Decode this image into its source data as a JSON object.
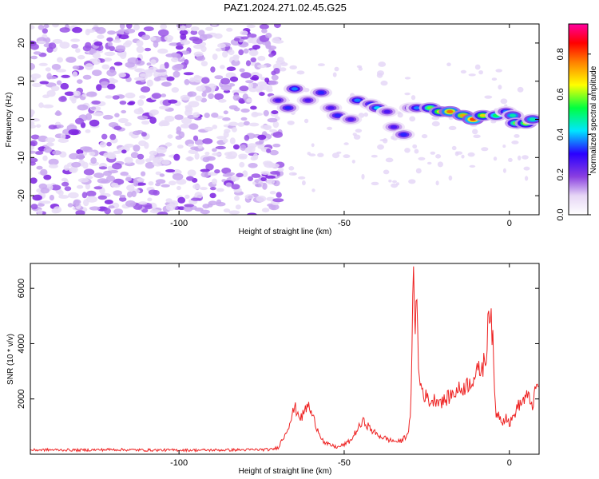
{
  "title": "PAZ1.2024.271.02.45.G25",
  "chart_data": [
    {
      "type": "heatmap",
      "xlabel": "Height of straight line (km)",
      "ylabel": "Frequency (Hz)",
      "xlim": [
        -145,
        9
      ],
      "ylim": [
        -25,
        25
      ],
      "x_ticks": [
        -100,
        -50,
        0
      ],
      "y_ticks": [
        -20,
        -10,
        0,
        10,
        20
      ],
      "colorbar": {
        "label": "Normalized spectral amplitude",
        "range": [
          0,
          0.95
        ],
        "ticks": [
          "0.0",
          "0.2",
          "0.4",
          "0.6",
          "0.8"
        ],
        "colormap": [
          "#ffffff",
          "#e6d6f5",
          "#8a3fe0",
          "#2a00ff",
          "#00e6ff",
          "#00ff40",
          "#ffff00",
          "#ff8000",
          "#ff0000",
          "#ff00a0"
        ]
      },
      "noise_region_x": [
        -145,
        -70
      ],
      "signal_trace": [
        {
          "x": -70,
          "y": 5,
          "amp": 0.3
        },
        {
          "x": -67,
          "y": 3,
          "amp": 0.35
        },
        {
          "x": -65,
          "y": 8,
          "amp": 0.4
        },
        {
          "x": -61,
          "y": 5,
          "amp": 0.3
        },
        {
          "x": -57,
          "y": 7,
          "amp": 0.35
        },
        {
          "x": -54,
          "y": 3,
          "amp": 0.3
        },
        {
          "x": -52,
          "y": 1,
          "amp": 0.35
        },
        {
          "x": -48,
          "y": 0,
          "amp": 0.3
        },
        {
          "x": -46,
          "y": 5,
          "amp": 0.4
        },
        {
          "x": -42,
          "y": 4,
          "amp": 0.35
        },
        {
          "x": -40,
          "y": 3,
          "amp": 0.45
        },
        {
          "x": -37,
          "y": 2,
          "amp": 0.3
        },
        {
          "x": -35,
          "y": -2,
          "amp": 0.3
        },
        {
          "x": -32,
          "y": -4,
          "amp": 0.35
        },
        {
          "x": -30,
          "y": 3,
          "amp": 0.3
        },
        {
          "x": -28,
          "y": 3,
          "amp": 0.4
        },
        {
          "x": -24,
          "y": 3,
          "amp": 0.6
        },
        {
          "x": -21,
          "y": 2,
          "amp": 0.7
        },
        {
          "x": -18,
          "y": 2,
          "amp": 0.8
        },
        {
          "x": -14,
          "y": 1,
          "amp": 0.75
        },
        {
          "x": -11,
          "y": 0,
          "amp": 0.85
        },
        {
          "x": -8,
          "y": 1,
          "amp": 0.7
        },
        {
          "x": -4,
          "y": 1,
          "amp": 0.55
        },
        {
          "x": -1,
          "y": 2,
          "amp": 0.4
        },
        {
          "x": 1,
          "y": 1,
          "amp": 0.5
        },
        {
          "x": 2,
          "y": -1,
          "amp": 0.6
        },
        {
          "x": 5,
          "y": -1,
          "amp": 0.65
        },
        {
          "x": 7,
          "y": 0,
          "amp": 0.5
        }
      ]
    },
    {
      "type": "line",
      "xlabel": "Height of straight line (km)",
      "ylabel": "SNR (10 * v/v)",
      "xlim": [
        -145,
        9
      ],
      "ylim": [
        0,
        6900
      ],
      "x_ticks": [
        -100,
        -50,
        0
      ],
      "y_ticks": [
        2000,
        4000,
        6000
      ],
      "series": [
        {
          "color": "#ee2222",
          "points": [
            [
              -145,
              150
            ],
            [
              -140,
              160
            ],
            [
              -130,
              150
            ],
            [
              -120,
              170
            ],
            [
              -110,
              150
            ],
            [
              -100,
              150
            ],
            [
              -90,
              150
            ],
            [
              -80,
              160
            ],
            [
              -72,
              170
            ],
            [
              -70,
              250
            ],
            [
              -68,
              700
            ],
            [
              -66,
              1300
            ],
            [
              -65,
              1700
            ],
            [
              -63,
              1300
            ],
            [
              -61,
              1800
            ],
            [
              -60,
              1500
            ],
            [
              -58,
              900
            ],
            [
              -56,
              400
            ],
            [
              -52,
              250
            ],
            [
              -50,
              350
            ],
            [
              -48,
              500
            ],
            [
              -46,
              900
            ],
            [
              -44,
              1200
            ],
            [
              -42,
              900
            ],
            [
              -40,
              700
            ],
            [
              -36,
              500
            ],
            [
              -33,
              450
            ],
            [
              -31,
              700
            ],
            [
              -30,
              1200
            ],
            [
              -29.5,
              3500
            ],
            [
              -29,
              6800
            ],
            [
              -28.5,
              4800
            ],
            [
              -28,
              5600
            ],
            [
              -27.5,
              3000
            ],
            [
              -27,
              2600
            ],
            [
              -26,
              2200
            ],
            [
              -24,
              1900
            ],
            [
              -22,
              2000
            ],
            [
              -20,
              1900
            ],
            [
              -18,
              2100
            ],
            [
              -16,
              2300
            ],
            [
              -14,
              2400
            ],
            [
              -12,
              2600
            ],
            [
              -10,
              2900
            ],
            [
              -8,
              3200
            ],
            [
              -7,
              3500
            ],
            [
              -6.5,
              5000
            ],
            [
              -6,
              5400
            ],
            [
              -5,
              4000
            ],
            [
              -4.5,
              2200
            ],
            [
              -4,
              1500
            ],
            [
              -3,
              1400
            ],
            [
              -2,
              1200
            ],
            [
              -1,
              1400
            ],
            [
              0,
              1100
            ],
            [
              1,
              1300
            ],
            [
              2,
              1600
            ],
            [
              3,
              1800
            ],
            [
              4,
              1900
            ],
            [
              5,
              2100
            ],
            [
              6,
              2000
            ],
            [
              7,
              1800
            ],
            [
              8,
              2300
            ],
            [
              9,
              2700
            ]
          ]
        }
      ]
    }
  ]
}
